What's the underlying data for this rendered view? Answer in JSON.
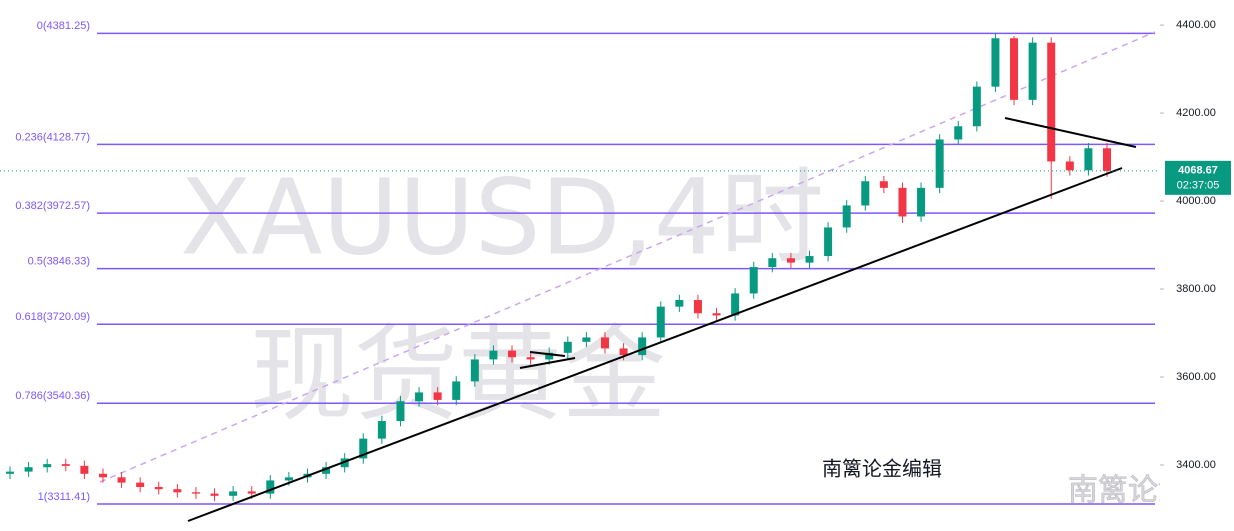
{
  "chart_data": {
    "type": "candlestick",
    "open": [
      3380,
      3385,
      3395,
      3402,
      3398,
      3380,
      3372,
      3360,
      3350,
      3345,
      3338,
      3335,
      3330,
      3340,
      3335,
      3365,
      3372,
      3380,
      3395,
      3415,
      3460,
      3500,
      3545,
      3565,
      3548,
      3590,
      3640,
      3660,
      3645,
      3640,
      3655,
      3680,
      3690,
      3665,
      3650,
      3690,
      3760,
      3775,
      3745,
      3740,
      3790,
      3850,
      3870,
      3860,
      3875,
      3940,
      3990,
      4045,
      4030,
      3965,
      4030,
      4140,
      4170,
      4260,
      4370,
      4230,
      4360,
      4090,
      4070,
      4120
    ],
    "high": [
      3397,
      3407,
      3414,
      3414,
      3410,
      3392,
      3384,
      3372,
      3362,
      3357,
      3350,
      3347,
      3352,
      3352,
      3377,
      3384,
      3392,
      3407,
      3427,
      3472,
      3512,
      3557,
      3577,
      3577,
      3602,
      3652,
      3672,
      3672,
      3657,
      3667,
      3692,
      3702,
      3702,
      3677,
      3702,
      3772,
      3787,
      3787,
      3757,
      3802,
      3862,
      3882,
      3882,
      3887,
      3952,
      4002,
      4057,
      4057,
      4042,
      4042,
      4152,
      4182,
      4272,
      4381,
      4375,
      4372,
      4372,
      4102,
      4132,
      4132
    ],
    "low": [
      3368,
      3373,
      3383,
      3386,
      3368,
      3360,
      3348,
      3338,
      3333,
      3326,
      3323,
      3318,
      3318,
      3323,
      3323,
      3353,
      3360,
      3368,
      3383,
      3403,
      3448,
      3488,
      3533,
      3536,
      3536,
      3578,
      3628,
      3633,
      3628,
      3628,
      3643,
      3668,
      3653,
      3638,
      3638,
      3678,
      3748,
      3733,
      3728,
      3728,
      3778,
      3838,
      3848,
      3848,
      3863,
      3928,
      3978,
      4018,
      3950,
      3953,
      4018,
      4128,
      4158,
      4248,
      4218,
      4218,
      4005,
      4058,
      4058,
      4055
    ],
    "close": [
      3385,
      3395,
      3402,
      3398,
      3380,
      3372,
      3360,
      3350,
      3345,
      3338,
      3335,
      3330,
      3340,
      3335,
      3365,
      3372,
      3380,
      3395,
      3415,
      3460,
      3500,
      3545,
      3565,
      3548,
      3590,
      3640,
      3660,
      3645,
      3640,
      3655,
      3680,
      3690,
      3665,
      3650,
      3690,
      3760,
      3775,
      3745,
      3740,
      3790,
      3850,
      3870,
      3860,
      3875,
      3940,
      3990,
      4045,
      4030,
      3965,
      4030,
      4140,
      4170,
      4260,
      4370,
      4230,
      4360,
      4090,
      4070,
      4120,
      4068.67
    ],
    "up_color": "#089981",
    "down_color": "#f23645",
    "ylim": [
      3250,
      4457
    ],
    "yticks": [
      {
        "value": 3400,
        "label": "3400.00"
      },
      {
        "value": 3600,
        "label": "3600.00"
      },
      {
        "value": 3800,
        "label": "3800.00"
      },
      {
        "value": 4000,
        "label": "4000.00"
      },
      {
        "value": 4200,
        "label": "4200.00"
      },
      {
        "value": 4400,
        "label": "4400.00"
      }
    ],
    "fib_color": "#7e57ff",
    "fib_levels": [
      {
        "label": "0(4381.25)",
        "value": 4381.25
      },
      {
        "label": "0.236(4128.77)",
        "value": 4128.77
      },
      {
        "label": "0.382(3972.57)",
        "value": 3972.57
      },
      {
        "label": "0.5(3846.33)",
        "value": 3846.33
      },
      {
        "label": "0.618(3720.09)",
        "value": 3720.09
      },
      {
        "label": "0.786(3540.36)",
        "value": 3540.36
      },
      {
        "label": "1(3311.41)",
        "value": 3311.41
      }
    ],
    "last_price": 4068.67,
    "countdown": "02:37:05"
  },
  "watermarks": {
    "symbol": "XAUUSD,4时",
    "name": "现货黄金",
    "editor": "南篱论金编辑",
    "brand": "南篱论金"
  }
}
